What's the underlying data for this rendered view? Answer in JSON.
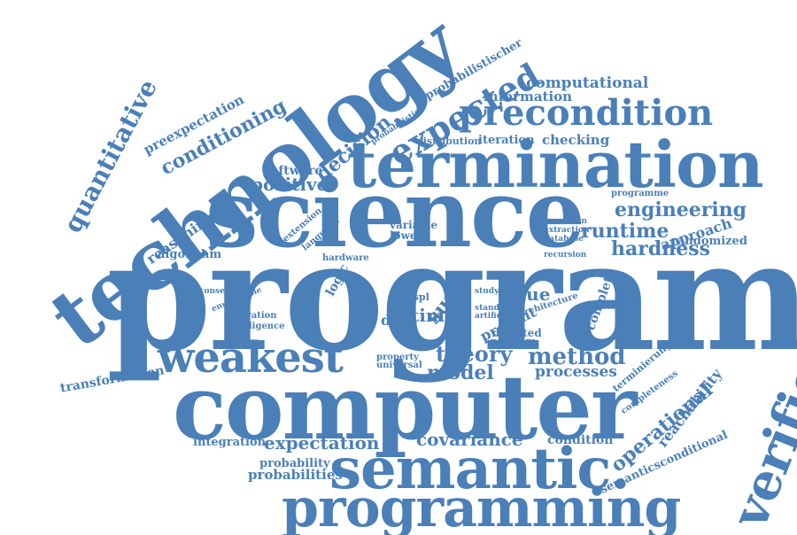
{
  "colors": {
    "word": "#4a7fb8",
    "background": "#ffffff"
  },
  "words": [
    "program",
    "science",
    "termination",
    "computer",
    "technology",
    "semantic.",
    "programming",
    "verification",
    "precondition",
    "weakest",
    "expected",
    "quantitative",
    "conditioning",
    "preexpectation",
    "probabilistischer",
    "computational",
    "information",
    "checking",
    "iteration",
    "distribution",
    "decision",
    "software",
    "positive",
    "engineering",
    "runtime",
    "approach",
    "randomized",
    "hardness",
    "reasoning",
    "algorithm",
    "conservative",
    "enumerable",
    "separation",
    "intelligence",
    "transformation",
    "method",
    "model",
    "theory",
    "processes",
    "value",
    "time",
    "data",
    "bound",
    "sure",
    "present",
    "complete",
    "architecture",
    "operational",
    "reachability",
    "completeness",
    "terminierung",
    "expectation",
    "covariance",
    "condition",
    "integration",
    "probability",
    "probabilities",
    "semanticsconditional",
    "programme",
    "extension",
    "language",
    "variable",
    "lower",
    "hardware",
    "logic",
    "cspl",
    "directed",
    "problem",
    "property",
    "universal",
    "recursion",
    "extraction",
    "database",
    "execution",
    "study",
    "artificial",
    "standard",
    "probabilistic",
    "logic"
  ]
}
